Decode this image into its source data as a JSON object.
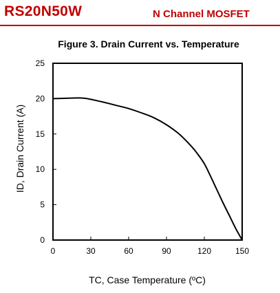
{
  "header": {
    "part_number": "RS20N50W",
    "device_type": "N Channel MOSFET",
    "accent_color": "#c00000"
  },
  "chart_data": {
    "type": "line",
    "title": "Figure 3. Drain Current vs. Temperature",
    "xlabel": "TC, Case Temperature (ºC)",
    "ylabel": "ID, Drain Current (A)",
    "xlim": [
      0,
      150
    ],
    "ylim": [
      0,
      25
    ],
    "xticks": [
      0,
      30,
      60,
      90,
      120,
      150
    ],
    "yticks": [
      0,
      5,
      10,
      15,
      20,
      25
    ],
    "grid": false,
    "series": [
      {
        "x": [
          0,
          10,
          20,
          25,
          30,
          40,
          50,
          60,
          70,
          80,
          90,
          100,
          110,
          115,
          120,
          125,
          130,
          135,
          140,
          145,
          150
        ],
        "values": [
          20,
          20.05,
          20.1,
          20.05,
          19.9,
          19.5,
          19.05,
          18.6,
          18.0,
          17.3,
          16.3,
          15.0,
          13.2,
          12.1,
          10.8,
          9.0,
          7.1,
          5.2,
          3.4,
          1.6,
          0
        ]
      }
    ]
  }
}
